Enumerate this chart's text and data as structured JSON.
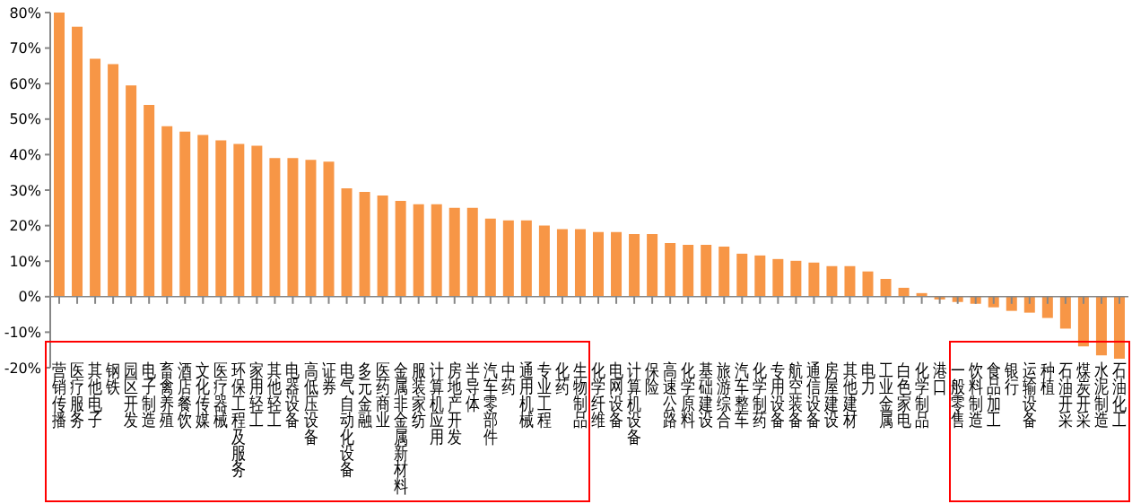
{
  "chart_data": {
    "type": "bar",
    "categories": [
      "营销传播",
      "医疗服务",
      "其他电子",
      "钢铁",
      "园区开发",
      "电子制造",
      "畜禽养殖",
      "酒店餐饮",
      "文化传媒",
      "医疗器械",
      "环保工程及服务",
      "家用轻工",
      "其他轻工",
      "电器设备",
      "高低压设备",
      "证券",
      "电气自动化设备",
      "多元金融",
      "医药商业",
      "金属非金属新材料",
      "服装家纺",
      "计算机应用",
      "房地产开发",
      "半导体",
      "汽车零部件",
      "中药",
      "通用机械",
      "专业工程",
      "化药",
      "生物制品",
      "化学纤维",
      "电网设备",
      "计算机设备",
      "保险",
      "高速公路",
      "化学原料",
      "基础建设",
      "旅游综合",
      "汽车整车",
      "化学制药",
      "专用设备",
      "航空装备",
      "通信设备",
      "房屋建设",
      "其他建材",
      "电力",
      "工业金属",
      "白色家电",
      "化学制品",
      "港口",
      "一般零售",
      "饮料制造",
      "食品加工",
      "银行",
      "运输设备",
      "种植",
      "石油开采",
      "煤炭开采",
      "水泥制造",
      "石油化工"
    ],
    "values": [
      80,
      76,
      67,
      65.5,
      59.5,
      54,
      48,
      46.5,
      45.5,
      44,
      43,
      42.5,
      39,
      39,
      38.5,
      38,
      30.5,
      29.5,
      28.5,
      27,
      26,
      26,
      25,
      25,
      22,
      21.5,
      21.5,
      20,
      19,
      19,
      18.2,
      18.2,
      17.6,
      17.6,
      15.1,
      14.6,
      14.6,
      14.1,
      12.1,
      11.6,
      10.6,
      10.1,
      9.6,
      8.6,
      8.6,
      7.1,
      5,
      2.5,
      1,
      -0.8,
      -1.5,
      -2,
      -3,
      -4,
      -4.5,
      -6,
      -9,
      -14,
      -16.5,
      -17.5
    ],
    "color": "#f79646",
    "ylim": [
      -20,
      80
    ],
    "yticks": [
      {
        "value": -20,
        "label": "-20%"
      },
      {
        "value": -10,
        "label": "-10%"
      },
      {
        "value": 0,
        "label": "0%"
      },
      {
        "value": 10,
        "label": "10%"
      },
      {
        "value": 20,
        "label": "20%"
      },
      {
        "value": 30,
        "label": "30%"
      },
      {
        "value": 40,
        "label": "40%"
      },
      {
        "value": 50,
        "label": "50%"
      },
      {
        "value": 60,
        "label": "60%"
      },
      {
        "value": 70,
        "label": "70%"
      },
      {
        "value": 80,
        "label": "80%"
      }
    ],
    "ref_lines": [
      {
        "axis": "y",
        "value": 0,
        "color": "#868686"
      }
    ],
    "grid": false,
    "legend": false
  }
}
